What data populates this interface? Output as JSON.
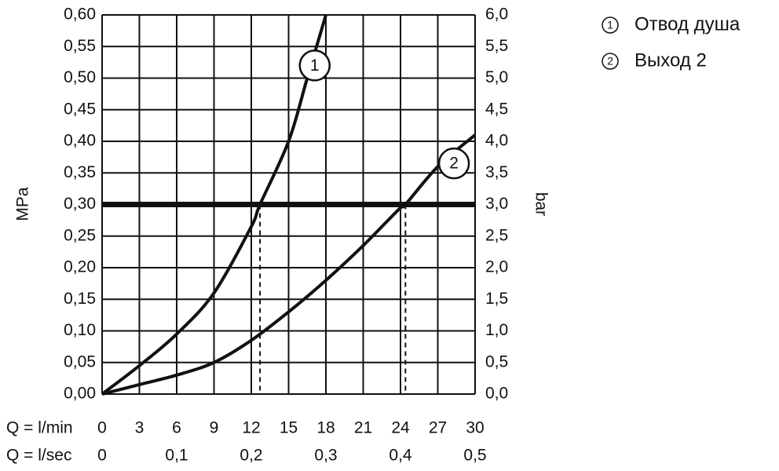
{
  "chart_data": {
    "type": "line",
    "xlabel": "Q = l/min",
    "x2label": "Q = l/sec",
    "ylabel": "MPa",
    "y2label": "bar",
    "xlim": [
      0,
      30
    ],
    "xticks": [
      0,
      3,
      6,
      9,
      12,
      15,
      18,
      21,
      24,
      27,
      30
    ],
    "x2lim": [
      0,
      0.5
    ],
    "x2ticks": [
      0,
      {
        "value": 0.1,
        "label": "0,1"
      },
      {
        "value": 0.2,
        "label": "0,2"
      },
      {
        "value": 0.3,
        "label": "0,3"
      },
      {
        "value": 0.4,
        "label": "0,4"
      },
      {
        "value": 0.5,
        "label": "0,5"
      }
    ],
    "ylim": [
      0,
      0.6
    ],
    "yticks": [
      {
        "value": 0,
        "label": "0,00"
      },
      {
        "value": 0.05,
        "label": "0,05"
      },
      {
        "value": 0.1,
        "label": "0,10"
      },
      {
        "value": 0.15,
        "label": "0,15"
      },
      {
        "value": 0.2,
        "label": "0,20"
      },
      {
        "value": 0.25,
        "label": "0,25"
      },
      {
        "value": 0.3,
        "label": "0,30"
      },
      {
        "value": 0.35,
        "label": "0,35"
      },
      {
        "value": 0.4,
        "label": "0,40"
      },
      {
        "value": 0.45,
        "label": "0,45"
      },
      {
        "value": 0.5,
        "label": "0,50"
      },
      {
        "value": 0.55,
        "label": "0,55"
      },
      {
        "value": 0.6,
        "label": "0,60"
      }
    ],
    "y2lim": [
      0,
      6
    ],
    "y2ticks": [
      {
        "value": 0,
        "label": "0,0"
      },
      {
        "value": 0.5,
        "label": "0,5"
      },
      {
        "value": 1,
        "label": "1,0"
      },
      {
        "value": 1.5,
        "label": "1,5"
      },
      {
        "value": 2,
        "label": "2,0"
      },
      {
        "value": 2.5,
        "label": "2,5"
      },
      {
        "value": 3,
        "label": "3,0"
      },
      {
        "value": 3.5,
        "label": "3,5"
      },
      {
        "value": 4,
        "label": "4,0"
      },
      {
        "value": 4.5,
        "label": "4,5"
      },
      {
        "value": 5,
        "label": "5,0"
      },
      {
        "value": 5.5,
        "label": "5,5"
      },
      {
        "value": 6,
        "label": "6,0"
      }
    ],
    "grid": true,
    "hline": 0.3,
    "vlines": [
      12.7,
      24.4
    ],
    "series": [
      {
        "name": "Отвод душа",
        "label": "1",
        "color": "#111111",
        "x": [
          0,
          3,
          6,
          9,
          12,
          12.7,
          15,
          16.5,
          18
        ],
        "values": [
          0,
          0.045,
          0.095,
          0.16,
          0.265,
          0.3,
          0.4,
          0.5,
          0.6
        ]
      },
      {
        "name": "Выход 2",
        "label": "2",
        "color": "#111111",
        "x": [
          0,
          3,
          6,
          9,
          12,
          15,
          18,
          21,
          24,
          24.4,
          27,
          30
        ],
        "values": [
          0,
          0.015,
          0.03,
          0.05,
          0.085,
          0.13,
          0.18,
          0.235,
          0.295,
          0.3,
          0.36,
          0.41
        ]
      }
    ]
  }
}
